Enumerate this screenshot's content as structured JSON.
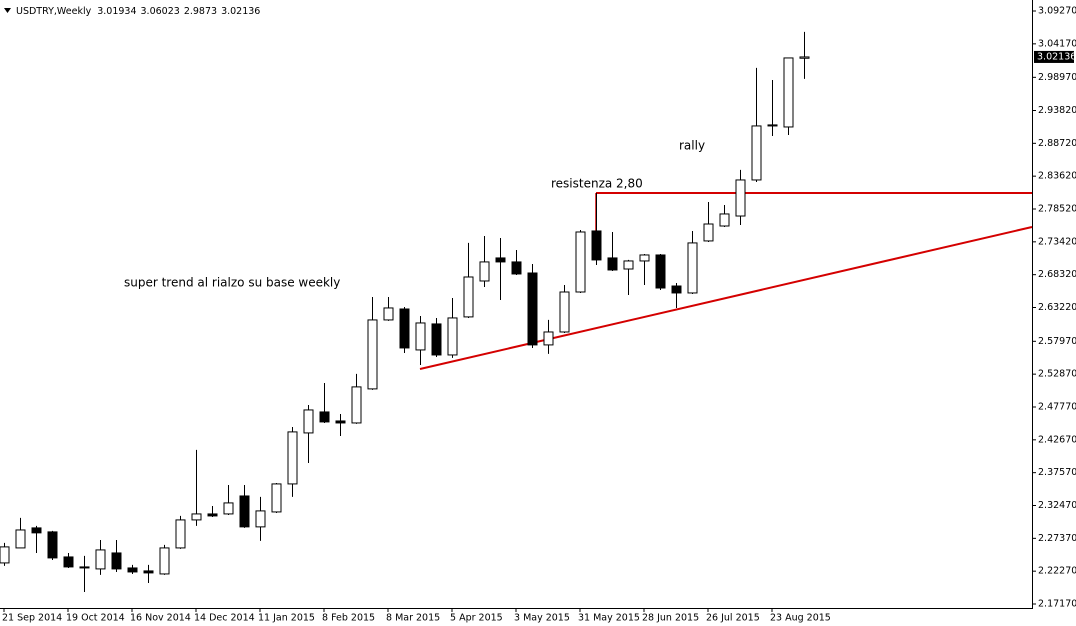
{
  "chart_data": {
    "type": "candlestick",
    "title": "USDTRY,Weekly",
    "categories": [
      "21 Sep 2014",
      null,
      null,
      null,
      "19 Oct 2014",
      null,
      null,
      null,
      "16 Nov 2014",
      null,
      null,
      null,
      "14 Dec 2014",
      null,
      null,
      null,
      "11 Jan 2015",
      null,
      null,
      null,
      "8 Feb 2015",
      null,
      null,
      null,
      "8 Mar 2015",
      null,
      null,
      null,
      "5 Apr 2015",
      null,
      null,
      null,
      "3 May 2015",
      null,
      null,
      null,
      "31 May 2015",
      null,
      null,
      null,
      "28 Jun 2015",
      null,
      null,
      null,
      "26 Jul 2015",
      null,
      null,
      null,
      "23 Aug 2015",
      null,
      null
    ],
    "open": [
      2.2355,
      2.2588,
      2.2899,
      2.2837,
      2.2448,
      2.2293,
      2.2262,
      2.251,
      2.2277,
      2.2231,
      2.2184,
      2.2588,
      2.3023,
      2.3116,
      2.3116,
      2.3395,
      2.2915,
      2.3147,
      2.3582,
      2.4374,
      2.47,
      2.456,
      2.4529,
      2.5058,
      2.6129,
      2.6299,
      2.5663,
      2.6067,
      2.5585,
      2.6176,
      2.6734,
      2.7092,
      2.703,
      2.6858,
      2.5741,
      2.5942,
      2.6563,
      2.7511,
      2.7092,
      2.692,
      2.7045,
      2.7138,
      2.6656,
      2.6548,
      2.7356,
      2.7588,
      2.7743,
      2.8303,
      2.9142,
      2.9126,
      3.01934
    ],
    "high": [
      2.2666,
      2.3054,
      2.293,
      2.2853,
      2.251,
      2.2464,
      2.2712,
      2.2712,
      2.2324,
      2.2324,
      2.2635,
      2.3085,
      2.411,
      2.324,
      2.3566,
      2.3566,
      2.338,
      2.3597,
      2.4467,
      2.4808,
      2.515,
      2.4669,
      2.5291,
      2.6486,
      2.6486,
      2.633,
      2.6191,
      2.616,
      2.647,
      2.7325,
      2.7433,
      2.7402,
      2.7216,
      2.6998,
      2.6129,
      2.6672,
      2.7526,
      2.8101,
      2.7495,
      2.7061,
      2.7154,
      2.7154,
      2.6703,
      2.7511,
      2.7961,
      2.7914,
      2.8459,
      3.0043,
      2.9856,
      3.0198,
      3.06023
    ],
    "low": [
      2.2309,
      2.2588,
      2.251,
      2.2401,
      2.2277,
      2.1904,
      2.2169,
      2.2215,
      2.2184,
      2.2044,
      2.2169,
      2.2573,
      2.293,
      2.3069,
      2.31,
      2.2899,
      2.2697,
      2.3131,
      2.338,
      2.3908,
      2.4529,
      2.4327,
      2.4514,
      2.5043,
      2.6114,
      2.5616,
      2.543,
      2.5554,
      2.5539,
      2.616,
      2.6641,
      2.6439,
      2.6827,
      2.5694,
      2.5601,
      2.5927,
      2.6548,
      2.6982,
      2.6889,
      2.6517,
      2.6672,
      2.6594,
      2.6315,
      2.6532,
      2.734,
      2.7573,
      2.7604,
      2.8272,
      2.8986,
      2.9002,
      2.9873
    ],
    "close": [
      2.2604,
      2.2867,
      2.2822,
      2.2433,
      2.2293,
      2.2277,
      2.2557,
      2.2262,
      2.2215,
      2.22,
      2.2588,
      2.3023,
      2.3116,
      2.3085,
      2.3287,
      2.2915,
      2.3163,
      2.3582,
      2.439,
      2.4731,
      2.4545,
      2.4529,
      2.5089,
      2.6129,
      2.6315,
      2.5694,
      2.6082,
      2.5585,
      2.616,
      2.6796,
      2.703,
      2.703,
      2.6843,
      2.5741,
      2.5942,
      2.6563,
      2.7495,
      2.7061,
      2.6905,
      2.7045,
      2.7138,
      2.6625,
      2.6548,
      2.7325,
      2.7619,
      2.7775,
      2.8303,
      2.9142,
      2.9158,
      3.0198,
      3.02136
    ],
    "up_color": "#ffffff",
    "down_color": "#000000",
    "ylim": [
      2.1655,
      3.1098
    ],
    "yticks": [
      {
        "value": 3.0927,
        "label": "3.09270"
      },
      {
        "value": 3.0417,
        "label": "3.04170"
      },
      {
        "value": 2.9897,
        "label": "2.98970"
      },
      {
        "value": 2.9382,
        "label": "2.93820"
      },
      {
        "value": 2.8872,
        "label": "2.88720"
      },
      {
        "value": 2.8362,
        "label": "2.83620"
      },
      {
        "value": 2.7852,
        "label": "2.78520"
      },
      {
        "value": 2.7342,
        "label": "2.73420"
      },
      {
        "value": 2.6832,
        "label": "2.68320"
      },
      {
        "value": 2.6322,
        "label": "2.63220"
      },
      {
        "value": 2.5797,
        "label": "2.57970"
      },
      {
        "value": 2.5287,
        "label": "2.52870"
      },
      {
        "value": 2.4777,
        "label": "2.47770"
      },
      {
        "value": 2.4267,
        "label": "2.42670"
      },
      {
        "value": 2.3757,
        "label": "2.37570"
      },
      {
        "value": 2.3247,
        "label": "2.32470"
      },
      {
        "value": 2.2737,
        "label": "2.27370"
      },
      {
        "value": 2.2227,
        "label": "2.22270"
      },
      {
        "value": 2.1717,
        "label": "2.17170"
      }
    ],
    "annotations": [
      "super trend al rialzo su base weekly",
      "resistenza 2,80",
      "rally"
    ]
  }
}
